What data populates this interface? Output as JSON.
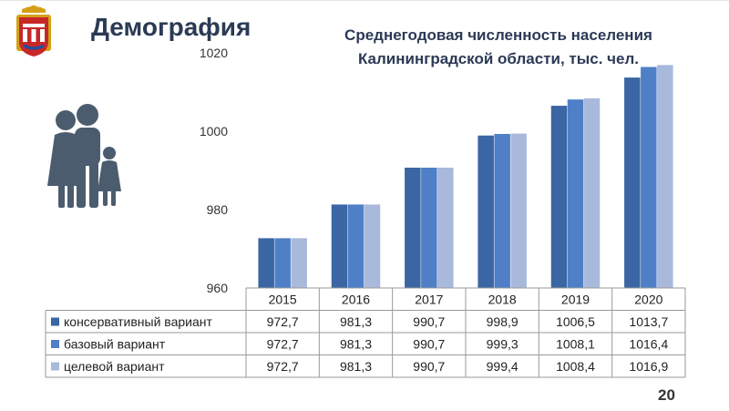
{
  "header": {
    "title": "Демография",
    "chart_title_line1": "Среднегодовая численность населения",
    "chart_title_line2": "Калининградской области, тыс. чел."
  },
  "icons": {
    "crest": "coat-of-arms-icon",
    "family": "family-icon"
  },
  "colors": {
    "conservative": "#3a66a3",
    "base": "#4f7fc7",
    "target": "#a9b9dc",
    "title": "#2b3a55",
    "icon": "#4b5c6e"
  },
  "chart_data": {
    "type": "bar",
    "categories": [
      "2015",
      "2016",
      "2017",
      "2018",
      "2019",
      "2020"
    ],
    "series": [
      {
        "name": "консервативный вариант",
        "values": [
          972.7,
          981.3,
          990.7,
          998.9,
          1006.5,
          1013.7
        ],
        "labels": [
          "972,7",
          "981,3",
          "990,7",
          "998,9",
          "1006,5",
          "1013,7"
        ]
      },
      {
        "name": "базовый вариант",
        "values": [
          972.7,
          981.3,
          990.7,
          999.3,
          1008.1,
          1016.4
        ],
        "labels": [
          "972,7",
          "981,3",
          "990,7",
          "999,3",
          "1008,1",
          "1016,4"
        ]
      },
      {
        "name": "целевой вариант",
        "values": [
          972.7,
          981.3,
          990.7,
          999.4,
          1008.4,
          1016.9
        ],
        "labels": [
          "972,7",
          "981,3",
          "990,7",
          "999,4",
          "1008,4",
          "1016,9"
        ]
      }
    ],
    "yticks": [
      "960",
      "980",
      "1000",
      "1020"
    ],
    "ylim": [
      960,
      1020
    ],
    "grid": false,
    "legend": "data-table"
  },
  "page_number": "20"
}
